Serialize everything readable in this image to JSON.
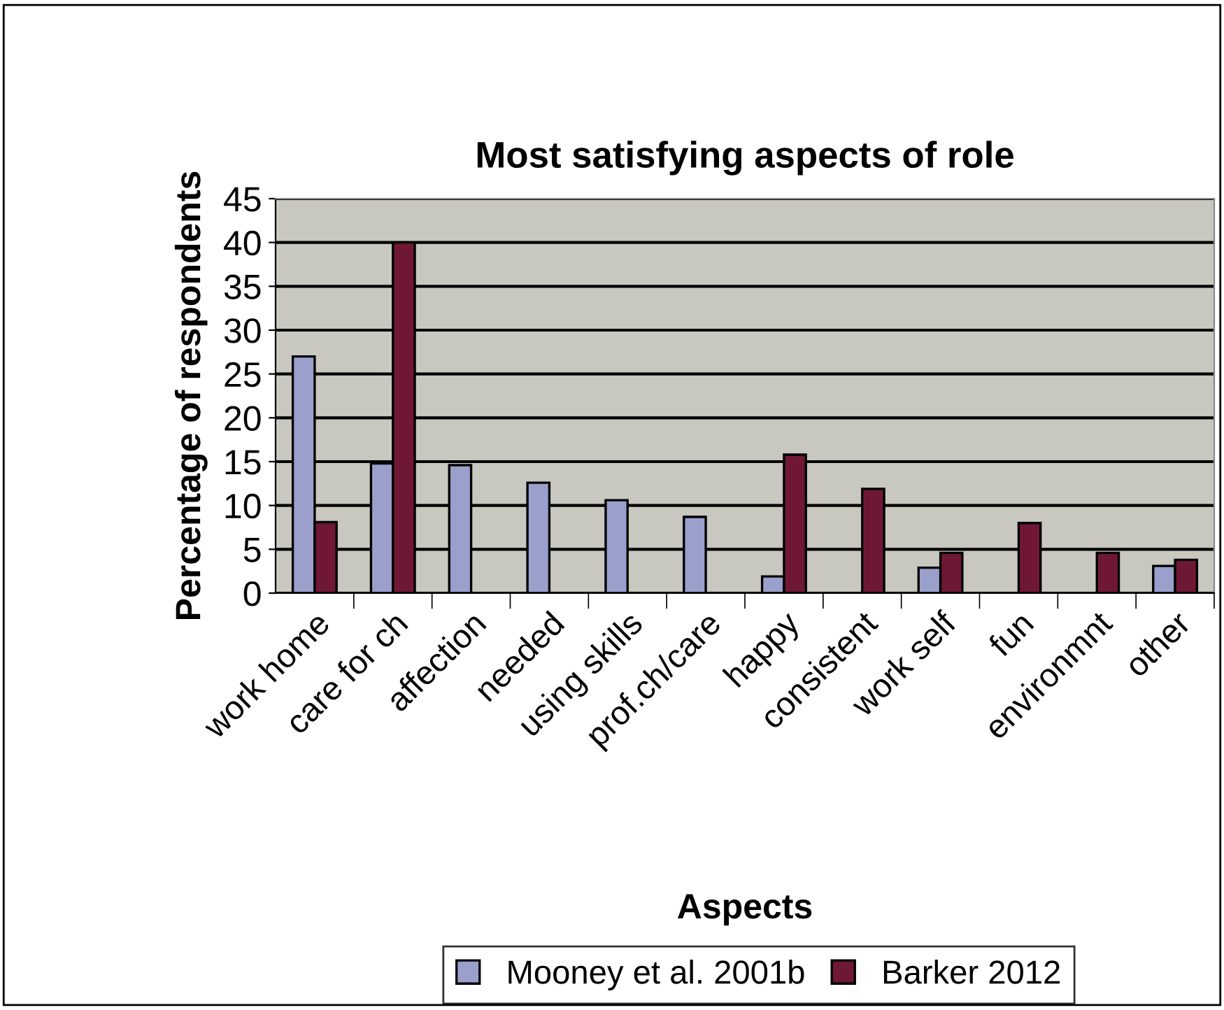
{
  "chart_data": {
    "type": "bar",
    "title": "Most satisfying aspects of role",
    "xlabel": "Aspects",
    "ylabel": "Percentage of respondents",
    "categories": [
      "work home",
      "care for ch",
      "affection",
      "needed",
      "using skills",
      "prof.ch/care",
      "happy",
      "consistent",
      "work self",
      "fun",
      "environmnt",
      "other"
    ],
    "series": [
      {
        "name": "Mooney et al. 2001b",
        "color": "#9a9fcc",
        "values": [
          27,
          14.8,
          14.6,
          12.6,
          10.6,
          8.7,
          1.9,
          null,
          2.9,
          null,
          null,
          3.1
        ]
      },
      {
        "name": "Barker 2012",
        "color": "#6e1835",
        "values": [
          8.1,
          40,
          null,
          null,
          null,
          null,
          15.8,
          11.9,
          4.6,
          8.0,
          4.6,
          3.8
        ]
      }
    ],
    "ylim": [
      0,
      45
    ],
    "yticks": [
      0,
      5,
      10,
      15,
      20,
      25,
      30,
      35,
      40,
      45
    ],
    "grid": "y",
    "legend": "bottom"
  }
}
